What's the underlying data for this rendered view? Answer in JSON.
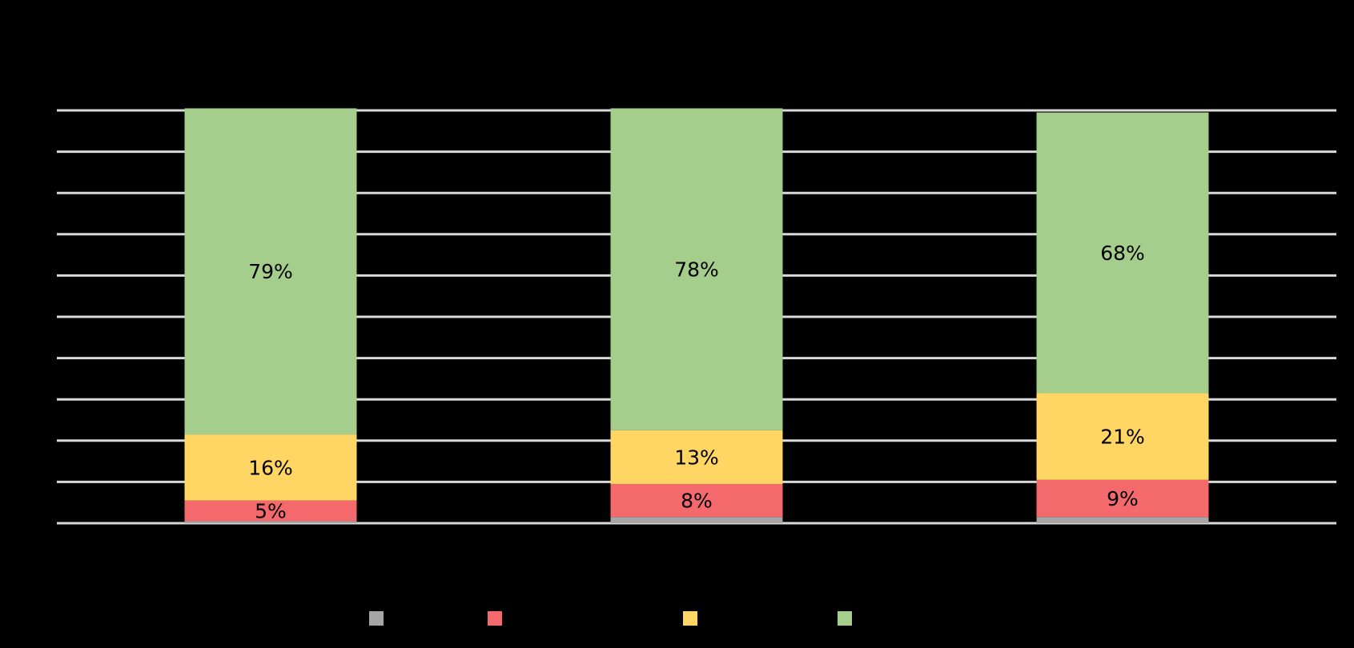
{
  "chart_data": {
    "type": "bar",
    "stacked": true,
    "percent_stacked": true,
    "title": "",
    "xlabel": "",
    "ylabel": "",
    "ylim": [
      0,
      100
    ],
    "gridlines": 10,
    "grid": true,
    "legend_position": "bottom",
    "categories": [
      "",
      "",
      ""
    ],
    "series": [
      {
        "color": "#A5A5A5",
        "values": [
          0.5,
          1.5,
          1.5
        ],
        "labels": [
          "",
          "",
          ""
        ]
      },
      {
        "color": "#F4696B",
        "values": [
          5,
          8,
          9
        ],
        "labels": [
          "5%",
          "8%",
          "9%"
        ]
      },
      {
        "color": "#FFD563",
        "values": [
          16,
          13,
          21
        ],
        "labels": [
          "16%",
          "13%",
          "21%"
        ]
      },
      {
        "color": "#A5CD8C",
        "values": [
          79,
          78,
          68
        ],
        "labels": [
          "79%",
          "78%",
          "68%"
        ]
      }
    ],
    "colors": {
      "background": "#000000",
      "grid": "#D9D9D9",
      "label_text": "#000000"
    }
  }
}
